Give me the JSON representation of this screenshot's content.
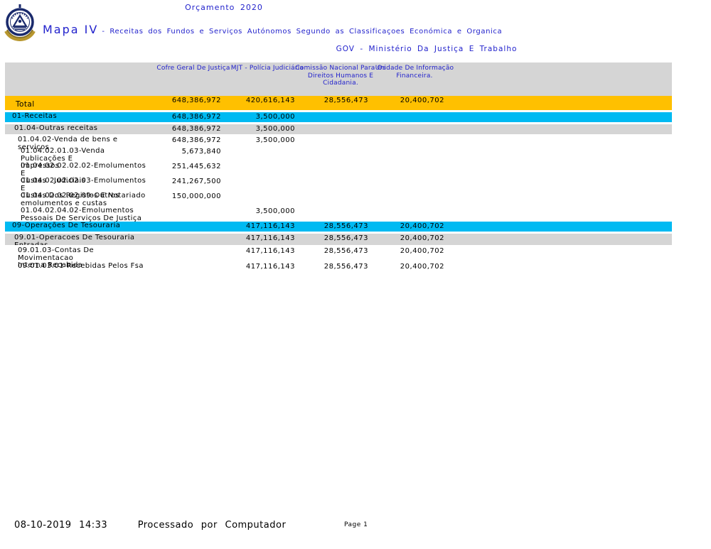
{
  "header": {
    "budget_title": "Orçamento 2020",
    "map_title": "Mapa IV",
    "map_subtitle": "- Receitas dos Fundos e Serviços Autónomos Segundo as Classificaçoes Económica e Organica",
    "gov_line": "GOV - Ministério Da Justiça E Trabalho",
    "logo_name": "cape-verde-national-emblem"
  },
  "table": {
    "columns": [
      "Cofre Geral De Justiça",
      "MJT - Polícia Judiciária",
      "Comissão Nacional Para Os Direitos Humanos E Cidadania.",
      "Unidade De Informação Financeira."
    ],
    "rows": [
      {
        "label": "Total",
        "label2": "",
        "level": "total",
        "values": [
          "648,386,972",
          "420,616,143",
          "28,556,473",
          "20,400,702"
        ]
      },
      {
        "label": "01-Receitas",
        "label2": "",
        "level": "section",
        "values": [
          "648,386,972",
          "3,500,000",
          "",
          ""
        ]
      },
      {
        "label": "01.04-Outras receitas",
        "label2": "",
        "level": "sub1",
        "values": [
          "648,386,972",
          "3,500,000",
          "",
          ""
        ]
      },
      {
        "label": "01.04.02-Venda de bens e serviços",
        "label2": "",
        "level": "sub2",
        "values": [
          "648,386,972",
          "3,500,000",
          "",
          ""
        ]
      },
      {
        "label": "01.04.02.01.03-Venda Publicações E",
        "label2": "Impressos",
        "level": "detail",
        "values": [
          "5,673,840",
          "",
          "",
          ""
        ]
      },
      {
        "label": "01.04.02.02.02.02-Emolumentos E",
        "label2": "Custas   Judiciais",
        "level": "detail",
        "values": [
          "251,445,632",
          "",
          "",
          ""
        ]
      },
      {
        "label": "01.04.02.02.02.03-Emolumentos E",
        "label2": "Custas Dos Registos E Notariado",
        "level": "detail",
        "values": [
          "241,267,500",
          "",
          "",
          ""
        ]
      },
      {
        "label": "01.04.02.02.02.09-Outros",
        "label2": "emolumentos e custas",
        "level": "detail",
        "values": [
          "150,000,000",
          "",
          "",
          ""
        ]
      },
      {
        "label": "01.04.02.04.02-Emolumentos",
        "label2": "Pessoais De Serviços De Justiça",
        "level": "detail",
        "values": [
          "",
          "3,500,000",
          "",
          ""
        ]
      },
      {
        "label": "09-Operações De Tesouraria",
        "label2": "",
        "level": "section",
        "values": [
          "",
          "417,116,143",
          "28,556,473",
          "20,400,702"
        ]
      },
      {
        "label": "09.01-Operacoes De Tesouraria",
        "label2": "Entradas",
        "level": "sub1-clip",
        "values": [
          "",
          "417,116,143",
          "28,556,473",
          "20,400,702"
        ]
      },
      {
        "label": "09.01.03-Contas De Movimentacao",
        "label2": "Interna Recebida",
        "level": "sub2-twoline",
        "values": [
          "",
          "417,116,143",
          "28,556,473",
          "20,400,702"
        ]
      },
      {
        "label": "09.01.03.01-Recebidas Pelos Fsa",
        "label2": "",
        "level": "detail2",
        "values": [
          "",
          "417,116,143",
          "28,556,473",
          "20,400,702"
        ]
      }
    ]
  },
  "footer": {
    "timestamp": "08-10-2019 14:33",
    "processed_by": "Processado por Computador",
    "page_label": "Page 1"
  },
  "colors": {
    "accent_blue": "#2222cc",
    "total_row": "#ffc000",
    "section_row": "#00baf2",
    "subtotal_row": "#d5d5d5"
  }
}
